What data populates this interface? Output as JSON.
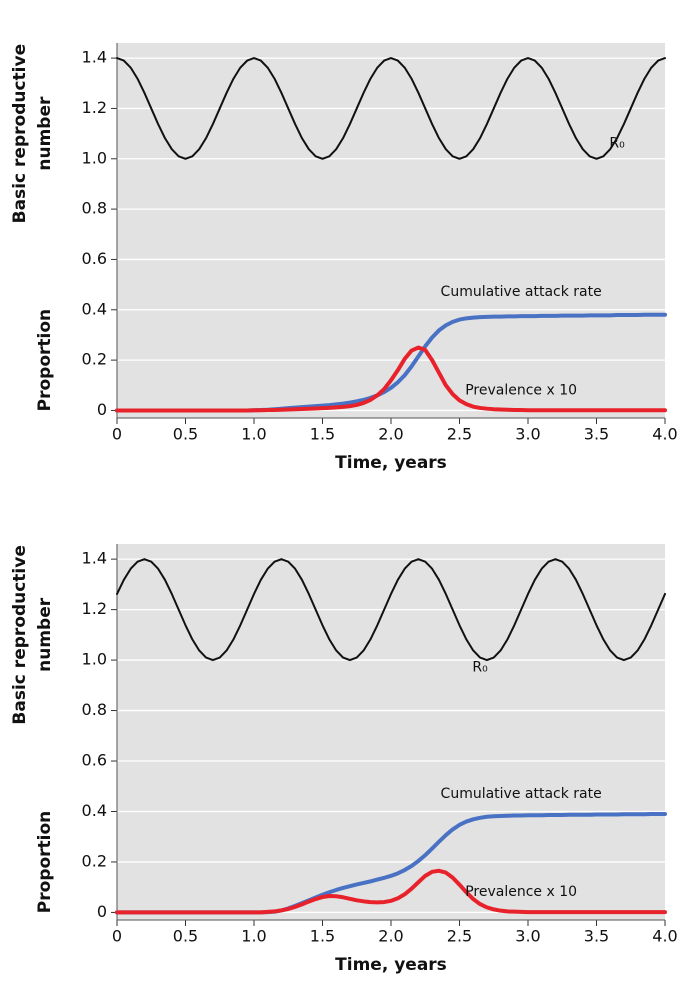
{
  "chart_data": [
    {
      "type": "line",
      "y_label": [
        "Basic reproductive",
        "number"
      ],
      "y_label_lower": "Proportion",
      "x_label": "Time, years",
      "x": [
        0,
        0.05,
        0.1,
        0.15,
        0.2,
        0.25,
        0.3,
        0.35,
        0.4,
        0.45,
        0.5,
        0.55,
        0.6,
        0.65,
        0.7,
        0.75,
        0.8,
        0.85,
        0.9,
        0.95,
        1,
        1.05,
        1.1,
        1.15,
        1.2,
        1.25,
        1.3,
        1.35,
        1.4,
        1.45,
        1.5,
        1.55,
        1.6,
        1.65,
        1.7,
        1.75,
        1.8,
        1.85,
        1.9,
        1.95,
        2,
        2.05,
        2.1,
        2.15,
        2.2,
        2.25,
        2.3,
        2.35,
        2.4,
        2.45,
        2.5,
        2.55,
        2.6,
        2.65,
        2.7,
        2.75,
        2.8,
        2.85,
        2.9,
        2.95,
        3,
        3.05,
        3.1,
        3.15,
        3.2,
        3.25,
        3.3,
        3.35,
        3.4,
        3.45,
        3.5,
        3.55,
        3.6,
        3.65,
        3.7,
        3.75,
        3.8,
        3.85,
        3.9,
        3.95,
        4
      ],
      "xlim": [
        0,
        4
      ],
      "xticks": [
        0,
        0.5,
        {
          "value": 1,
          "label": "1.0"
        },
        1.5,
        {
          "value": 2,
          "label": "2.0"
        },
        2.5,
        {
          "value": 3,
          "label": "3.0"
        },
        3.5,
        {
          "value": 4,
          "label": "4.0"
        }
      ],
      "ylim": [
        -0.03,
        1.46
      ],
      "yticks": [
        0,
        0.2,
        0.4,
        0.6,
        0.8,
        {
          "value": 1,
          "label": "1.0"
        },
        1.2,
        1.4
      ],
      "grid": true,
      "series": [
        {
          "name": "R₀",
          "color": "#111111",
          "values": [
            1.4,
            1.39,
            1.362,
            1.318,
            1.262,
            1.2,
            1.138,
            1.082,
            1.038,
            1.01,
            1.0,
            1.01,
            1.038,
            1.082,
            1.138,
            1.2,
            1.262,
            1.318,
            1.362,
            1.39,
            1.4,
            1.39,
            1.362,
            1.318,
            1.262,
            1.2,
            1.138,
            1.082,
            1.038,
            1.01,
            1.0,
            1.01,
            1.038,
            1.082,
            1.138,
            1.2,
            1.262,
            1.318,
            1.362,
            1.39,
            1.4,
            1.39,
            1.362,
            1.318,
            1.262,
            1.2,
            1.138,
            1.082,
            1.038,
            1.01,
            1.0,
            1.01,
            1.038,
            1.082,
            1.138,
            1.2,
            1.262,
            1.318,
            1.362,
            1.39,
            1.4,
            1.39,
            1.362,
            1.318,
            1.262,
            1.2,
            1.138,
            1.082,
            1.038,
            1.01,
            1.0,
            1.01,
            1.038,
            1.082,
            1.138,
            1.2,
            1.262,
            1.318,
            1.362,
            1.39,
            1.4
          ]
        },
        {
          "name": "Cumulative attack rate",
          "color": "#4a72c4",
          "values": [
            0,
            0,
            0,
            0,
            0,
            0,
            0,
            0,
            0,
            0,
            0,
            0,
            0,
            0,
            0,
            0,
            0,
            0,
            0,
            0,
            0.001,
            0.002,
            0.003,
            0.005,
            0.007,
            0.009,
            0.011,
            0.013,
            0.015,
            0.017,
            0.019,
            0.021,
            0.024,
            0.027,
            0.031,
            0.036,
            0.042,
            0.05,
            0.06,
            0.073,
            0.09,
            0.112,
            0.14,
            0.175,
            0.215,
            0.255,
            0.29,
            0.318,
            0.338,
            0.352,
            0.361,
            0.366,
            0.369,
            0.371,
            0.372,
            0.373,
            0.373,
            0.374,
            0.374,
            0.375,
            0.375,
            0.375,
            0.376,
            0.376,
            0.376,
            0.377,
            0.377,
            0.377,
            0.377,
            0.378,
            0.378,
            0.378,
            0.378,
            0.379,
            0.379,
            0.379,
            0.379,
            0.38,
            0.38,
            0.38,
            0.38
          ]
        },
        {
          "name": "Prevalence x 10",
          "color": "#e8222a",
          "values": [
            0,
            0,
            0,
            0,
            0,
            0,
            0,
            0,
            0,
            0,
            0,
            0,
            0,
            0,
            0,
            0,
            0,
            0,
            0,
            0,
            0.001,
            0.001,
            0.002,
            0.002,
            0.003,
            0.004,
            0.005,
            0.006,
            0.007,
            0.008,
            0.009,
            0.01,
            0.012,
            0.014,
            0.017,
            0.022,
            0.03,
            0.042,
            0.06,
            0.085,
            0.12,
            0.16,
            0.205,
            0.238,
            0.25,
            0.24,
            0.2,
            0.15,
            0.1,
            0.065,
            0.04,
            0.025,
            0.015,
            0.01,
            0.007,
            0.005,
            0.004,
            0.003,
            0.002,
            0.002,
            0.001,
            0.001,
            0.001,
            0.001,
            0.001,
            0.001,
            0.001,
            0.001,
            0.001,
            0.001,
            0.001,
            0.001,
            0.001,
            0.001,
            0.001,
            0.001,
            0.001,
            0.001,
            0.001,
            0.001,
            0.001
          ]
        }
      ]
    },
    {
      "type": "line",
      "y_label": [
        "Basic reproductive",
        "number"
      ],
      "y_label_lower": "Proportion",
      "x_label": "Time, years",
      "x": [
        0,
        0.05,
        0.1,
        0.15,
        0.2,
        0.25,
        0.3,
        0.35,
        0.4,
        0.45,
        0.5,
        0.55,
        0.6,
        0.65,
        0.7,
        0.75,
        0.8,
        0.85,
        0.9,
        0.95,
        1,
        1.05,
        1.1,
        1.15,
        1.2,
        1.25,
        1.3,
        1.35,
        1.4,
        1.45,
        1.5,
        1.55,
        1.6,
        1.65,
        1.7,
        1.75,
        1.8,
        1.85,
        1.9,
        1.95,
        2,
        2.05,
        2.1,
        2.15,
        2.2,
        2.25,
        2.3,
        2.35,
        2.4,
        2.45,
        2.5,
        2.55,
        2.6,
        2.65,
        2.7,
        2.75,
        2.8,
        2.85,
        2.9,
        2.95,
        3,
        3.05,
        3.1,
        3.15,
        3.2,
        3.25,
        3.3,
        3.35,
        3.4,
        3.45,
        3.5,
        3.55,
        3.6,
        3.65,
        3.7,
        3.75,
        3.8,
        3.85,
        3.9,
        3.95,
        4
      ],
      "xlim": [
        0,
        4
      ],
      "xticks": [
        0,
        0.5,
        {
          "value": 1,
          "label": "1.0"
        },
        1.5,
        {
          "value": 2,
          "label": "2.0"
        },
        2.5,
        {
          "value": 3,
          "label": "3.0"
        },
        3.5,
        {
          "value": 4,
          "label": "4.0"
        }
      ],
      "ylim": [
        -0.03,
        1.46
      ],
      "yticks": [
        0,
        0.2,
        0.4,
        0.6,
        0.8,
        {
          "value": 1,
          "label": "1.0"
        },
        1.2,
        1.4
      ],
      "grid": true,
      "series": [
        {
          "name": "R₀",
          "color": "#111111",
          "values": [
            1.262,
            1.318,
            1.362,
            1.39,
            1.4,
            1.39,
            1.362,
            1.318,
            1.262,
            1.2,
            1.138,
            1.082,
            1.038,
            1.01,
            1,
            1.01,
            1.038,
            1.082,
            1.138,
            1.2,
            1.262,
            1.318,
            1.362,
            1.39,
            1.4,
            1.39,
            1.362,
            1.318,
            1.262,
            1.2,
            1.138,
            1.082,
            1.038,
            1.01,
            1,
            1.01,
            1.038,
            1.082,
            1.138,
            1.2,
            1.262,
            1.318,
            1.362,
            1.39,
            1.4,
            1.39,
            1.362,
            1.318,
            1.262,
            1.2,
            1.138,
            1.082,
            1.038,
            1.01,
            1,
            1.01,
            1.038,
            1.082,
            1.138,
            1.2,
            1.262,
            1.318,
            1.362,
            1.39,
            1.4,
            1.39,
            1.362,
            1.318,
            1.262,
            1.2,
            1.138,
            1.082,
            1.038,
            1.01,
            1,
            1.01,
            1.038,
            1.082,
            1.138,
            1.2,
            1.262
          ]
        },
        {
          "name": "Cumulative attack rate",
          "color": "#4a72c4",
          "values": [
            0,
            0,
            0,
            0,
            0,
            0,
            0,
            0,
            0,
            0,
            0,
            0,
            0,
            0,
            0,
            0,
            0,
            0,
            0,
            0,
            0,
            0,
            0.001,
            0.003,
            0.008,
            0.016,
            0.026,
            0.037,
            0.048,
            0.059,
            0.07,
            0.08,
            0.089,
            0.097,
            0.104,
            0.111,
            0.117,
            0.123,
            0.13,
            0.137,
            0.145,
            0.155,
            0.168,
            0.184,
            0.204,
            0.227,
            0.253,
            0.28,
            0.306,
            0.329,
            0.347,
            0.36,
            0.369,
            0.375,
            0.379,
            0.381,
            0.382,
            0.383,
            0.384,
            0.384,
            0.385,
            0.385,
            0.385,
            0.386,
            0.386,
            0.386,
            0.387,
            0.387,
            0.387,
            0.387,
            0.388,
            0.388,
            0.388,
            0.388,
            0.389,
            0.389,
            0.389,
            0.389,
            0.39,
            0.39,
            0.39
          ]
        },
        {
          "name": "Prevalence x 10",
          "color": "#e8222a",
          "values": [
            0,
            0,
            0,
            0,
            0,
            0,
            0,
            0,
            0,
            0,
            0,
            0,
            0,
            0,
            0,
            0,
            0,
            0,
            0,
            0,
            0,
            0,
            0.002,
            0.004,
            0.008,
            0.014,
            0.022,
            0.032,
            0.043,
            0.053,
            0.061,
            0.065,
            0.064,
            0.06,
            0.054,
            0.048,
            0.044,
            0.041,
            0.04,
            0.041,
            0.046,
            0.056,
            0.072,
            0.094,
            0.12,
            0.145,
            0.161,
            0.165,
            0.158,
            0.138,
            0.11,
            0.08,
            0.053,
            0.033,
            0.02,
            0.012,
            0.007,
            0.004,
            0.003,
            0.002,
            0.001,
            0.001,
            0.001,
            0.001,
            0.001,
            0.001,
            0.001,
            0.001,
            0.001,
            0.001,
            0.001,
            0.001,
            0.001,
            0.001,
            0.001,
            0.001,
            0.001,
            0.001,
            0.001,
            0.001,
            0.001
          ]
        }
      ]
    }
  ]
}
